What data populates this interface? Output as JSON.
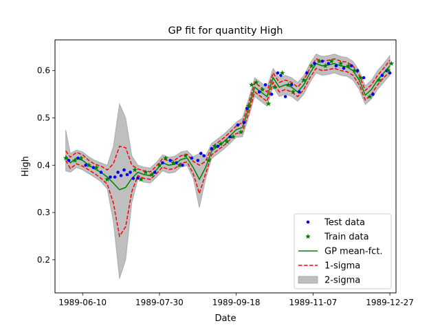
{
  "chart_data": {
    "type": "line",
    "title": "GP fit for quantity High",
    "xlabel": "Date",
    "ylabel": "High",
    "x_axis": {
      "type": "date",
      "range": [
        "1989-05-23",
        "1989-12-31"
      ],
      "ticks": [
        "1989-06-10",
        "1989-07-30",
        "1989-09-18",
        "1989-11-07",
        "1989-12-27"
      ]
    },
    "y_axis": {
      "range": [
        0.13,
        0.665
      ],
      "ticks": [
        0.2,
        0.3,
        0.4,
        0.5,
        0.6
      ],
      "tick_labels": [
        "0.2",
        "0.3",
        "0.4",
        "0.5",
        "0.6"
      ]
    },
    "grid": false,
    "legend_position": "lower right",
    "legend": [
      {
        "label": "Test data",
        "type": "marker-dot",
        "color": "#0000ff"
      },
      {
        "label": "Train data",
        "type": "marker-star",
        "color": "#008000"
      },
      {
        "label": "GP mean-fct.",
        "type": "line",
        "color": "#008000"
      },
      {
        "label": "1-sigma",
        "type": "dashed",
        "color": "#ff0000"
      },
      {
        "label": "2-sigma",
        "type": "band",
        "color": "#bfbfbf"
      }
    ],
    "gp": {
      "x": [
        "1989-05-30",
        "1989-06-02",
        "1989-06-06",
        "1989-06-10",
        "1989-06-14",
        "1989-06-18",
        "1989-06-22",
        "1989-06-26",
        "1989-06-30",
        "1989-07-04",
        "1989-07-08",
        "1989-07-12",
        "1989-07-16",
        "1989-07-20",
        "1989-07-24",
        "1989-07-28",
        "1989-08-01",
        "1989-08-05",
        "1989-08-09",
        "1989-08-13",
        "1989-08-17",
        "1989-08-21",
        "1989-08-25",
        "1989-08-29",
        "1989-09-02",
        "1989-09-06",
        "1989-09-10",
        "1989-09-14",
        "1989-09-18",
        "1989-09-22",
        "1989-09-26",
        "1989-09-30",
        "1989-10-04",
        "1989-10-08",
        "1989-10-12",
        "1989-10-16",
        "1989-10-20",
        "1989-10-24",
        "1989-10-28",
        "1989-11-01",
        "1989-11-05",
        "1989-11-09",
        "1989-11-13",
        "1989-11-17",
        "1989-11-21",
        "1989-11-25",
        "1989-11-29",
        "1989-12-03",
        "1989-12-07",
        "1989-12-11",
        "1989-12-15",
        "1989-12-19",
        "1989-12-23",
        "1989-12-27"
      ],
      "mean": [
        0.42,
        0.405,
        0.415,
        0.41,
        0.4,
        0.392,
        0.385,
        0.375,
        0.362,
        0.348,
        0.353,
        0.372,
        0.385,
        0.38,
        0.378,
        0.39,
        0.405,
        0.4,
        0.402,
        0.412,
        0.415,
        0.395,
        0.37,
        0.395,
        0.43,
        0.44,
        0.45,
        0.462,
        0.475,
        0.48,
        0.52,
        0.565,
        0.555,
        0.545,
        0.585,
        0.565,
        0.57,
        0.565,
        0.555,
        0.57,
        0.595,
        0.615,
        0.61,
        0.612,
        0.615,
        0.61,
        0.608,
        0.6,
        0.58,
        0.548,
        0.56,
        0.58,
        0.595,
        0.61
      ],
      "sigma1_upper": [
        0.43,
        0.417,
        0.427,
        0.422,
        0.41,
        0.402,
        0.398,
        0.39,
        0.403,
        0.44,
        0.437,
        0.4,
        0.392,
        0.388,
        0.386,
        0.398,
        0.414,
        0.409,
        0.411,
        0.42,
        0.423,
        0.408,
        0.4,
        0.408,
        0.438,
        0.448,
        0.458,
        0.47,
        0.483,
        0.49,
        0.53,
        0.575,
        0.565,
        0.555,
        0.595,
        0.575,
        0.58,
        0.575,
        0.565,
        0.58,
        0.605,
        0.625,
        0.62,
        0.622,
        0.625,
        0.62,
        0.618,
        0.61,
        0.59,
        0.558,
        0.57,
        0.59,
        0.605,
        0.622
      ],
      "sigma1_lower": [
        0.41,
        0.393,
        0.403,
        0.398,
        0.39,
        0.382,
        0.372,
        0.36,
        0.32,
        0.25,
        0.27,
        0.344,
        0.378,
        0.372,
        0.37,
        0.382,
        0.396,
        0.391,
        0.393,
        0.404,
        0.407,
        0.382,
        0.34,
        0.382,
        0.422,
        0.432,
        0.442,
        0.454,
        0.467,
        0.47,
        0.51,
        0.555,
        0.545,
        0.535,
        0.575,
        0.555,
        0.56,
        0.555,
        0.545,
        0.56,
        0.585,
        0.605,
        0.6,
        0.602,
        0.605,
        0.6,
        0.598,
        0.59,
        0.57,
        0.538,
        0.55,
        0.57,
        0.585,
        0.598
      ],
      "sigma2_upper": [
        0.475,
        0.425,
        0.432,
        0.428,
        0.418,
        0.41,
        0.405,
        0.4,
        0.44,
        0.53,
        0.5,
        0.42,
        0.4,
        0.396,
        0.394,
        0.406,
        0.422,
        0.417,
        0.419,
        0.428,
        0.431,
        0.418,
        0.425,
        0.42,
        0.446,
        0.456,
        0.466,
        0.478,
        0.491,
        0.5,
        0.54,
        0.585,
        0.575,
        0.565,
        0.605,
        0.585,
        0.59,
        0.585,
        0.575,
        0.59,
        0.615,
        0.635,
        0.63,
        0.632,
        0.635,
        0.63,
        0.628,
        0.62,
        0.6,
        0.568,
        0.58,
        0.6,
        0.615,
        0.632
      ],
      "sigma2_lower": [
        0.388,
        0.385,
        0.395,
        0.39,
        0.382,
        0.374,
        0.365,
        0.35,
        0.28,
        0.16,
        0.2,
        0.32,
        0.37,
        0.364,
        0.362,
        0.374,
        0.388,
        0.383,
        0.385,
        0.396,
        0.399,
        0.372,
        0.31,
        0.37,
        0.414,
        0.424,
        0.434,
        0.446,
        0.459,
        0.46,
        0.5,
        0.545,
        0.535,
        0.525,
        0.565,
        0.545,
        0.55,
        0.545,
        0.535,
        0.55,
        0.575,
        0.595,
        0.59,
        0.592,
        0.595,
        0.59,
        0.588,
        0.58,
        0.56,
        0.528,
        0.54,
        0.56,
        0.575,
        0.59
      ]
    },
    "train": {
      "x": [
        "1989-05-30",
        "1989-06-05",
        "1989-06-09",
        "1989-06-14",
        "1989-06-19",
        "1989-06-26",
        "1989-07-14",
        "1989-07-18",
        "1989-07-21",
        "1989-07-25",
        "1989-07-30",
        "1989-08-03",
        "1989-08-08",
        "1989-08-12",
        "1989-08-16",
        "1989-08-31",
        "1989-09-04",
        "1989-09-08",
        "1989-09-12",
        "1989-09-16",
        "1989-09-21",
        "1989-09-26",
        "1989-09-28",
        "1989-10-01",
        "1989-10-05",
        "1989-10-09",
        "1989-10-13",
        "1989-10-18",
        "1989-10-22",
        "1989-10-25",
        "1989-11-01",
        "1989-11-06",
        "1989-11-11",
        "1989-11-15",
        "1989-11-19",
        "1989-11-25",
        "1989-11-30",
        "1989-12-04",
        "1989-12-08",
        "1989-12-14",
        "1989-12-20",
        "1989-12-26",
        "1989-12-28"
      ],
      "y": [
        0.415,
        0.41,
        0.415,
        0.4,
        0.395,
        0.37,
        0.39,
        0.37,
        0.385,
        0.38,
        0.4,
        0.415,
        0.405,
        0.4,
        0.42,
        0.41,
        0.44,
        0.445,
        0.45,
        0.46,
        0.47,
        0.525,
        0.57,
        0.575,
        0.56,
        0.53,
        0.565,
        0.595,
        0.57,
        0.555,
        0.58,
        0.61,
        0.62,
        0.61,
        0.62,
        0.615,
        0.61,
        0.6,
        0.585,
        0.545,
        0.58,
        0.6,
        0.615
      ]
    },
    "test": {
      "x": [
        "1989-06-01",
        "1989-06-07",
        "1989-06-12",
        "1989-06-17",
        "1989-06-22",
        "1989-06-28",
        "1989-07-01",
        "1989-07-03",
        "1989-07-05",
        "1989-07-07",
        "1989-07-09",
        "1989-07-11",
        "1989-07-13",
        "1989-07-16",
        "1989-07-27",
        "1989-08-01",
        "1989-08-06",
        "1989-08-10",
        "1989-08-14",
        "1989-08-20",
        "1989-08-24",
        "1989-08-26",
        "1989-08-28",
        "1989-09-02",
        "1989-09-06",
        "1989-09-14",
        "1989-09-19",
        "1989-09-23",
        "1989-09-25",
        "1989-10-03",
        "1989-10-07",
        "1989-10-11",
        "1989-10-15",
        "1989-10-17",
        "1989-10-20",
        "1989-10-24",
        "1989-10-29",
        "1989-11-03",
        "1989-11-08",
        "1989-11-13",
        "1989-11-17",
        "1989-11-22",
        "1989-11-27",
        "1989-12-02",
        "1989-12-06",
        "1989-12-10",
        "1989-12-16",
        "1989-12-22",
        "1989-12-25",
        "1989-12-27"
      ],
      "y": [
        0.41,
        0.415,
        0.4,
        0.395,
        0.385,
        0.375,
        0.375,
        0.385,
        0.378,
        0.39,
        0.38,
        0.385,
        0.372,
        0.373,
        0.385,
        0.405,
        0.41,
        0.405,
        0.4,
        0.415,
        0.41,
        0.425,
        0.42,
        0.435,
        0.44,
        0.46,
        0.485,
        0.49,
        0.52,
        0.555,
        0.57,
        0.55,
        0.595,
        0.59,
        0.545,
        0.57,
        0.555,
        0.595,
        0.615,
        0.62,
        0.615,
        0.61,
        0.605,
        0.61,
        0.6,
        0.585,
        0.55,
        0.59,
        0.6,
        0.595
      ]
    }
  }
}
